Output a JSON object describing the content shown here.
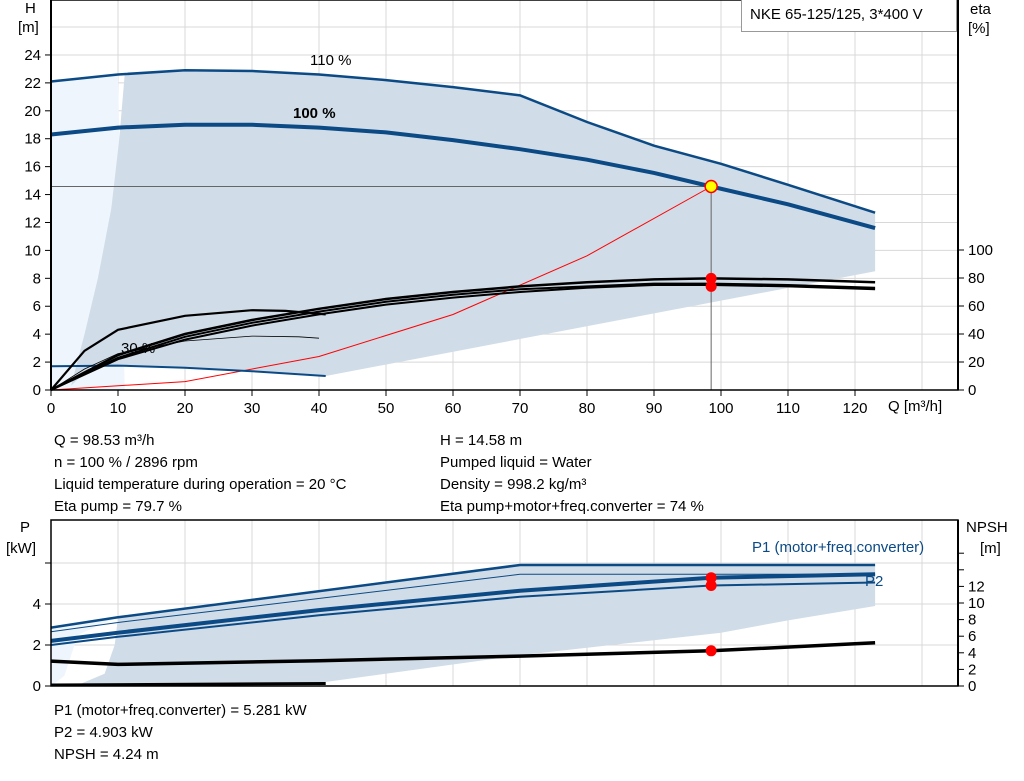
{
  "title": "NKE 65-125/125, 3*400 V",
  "colors": {
    "curve_blue": "#0b4a85",
    "shade": "#d0dce7",
    "shade_light": "#eef5fc",
    "duty_red": "#ff0000",
    "duty_yellow": "#ffff00",
    "system_curve": "#ff0000"
  },
  "chart_data": [
    {
      "type": "line",
      "name": "head-efficiency",
      "xlabel": "Q [m³/h]",
      "ylabel_left": [
        "H",
        "[m]"
      ],
      "ylabel_right": [
        "eta",
        "[%]"
      ],
      "xlim": [
        0,
        134
      ],
      "ylim_left": [
        0,
        27.9
      ],
      "ylim_right": [
        0,
        100
      ],
      "xticks": [
        "0",
        "10",
        "20",
        "30",
        "40",
        "50",
        "60",
        "70",
        "80",
        "90",
        "100",
        "110",
        "120"
      ],
      "yticks_left": [
        "0",
        "2",
        "4",
        "6",
        "8",
        "10",
        "12",
        "14",
        "16",
        "18",
        "20",
        "22",
        "24"
      ],
      "yticks_right": [
        "0",
        "20",
        "40",
        "60",
        "80",
        "100"
      ],
      "grid": true,
      "curve_labels": {
        "h110": "110 %",
        "h100": "100 %",
        "h30": "30 %"
      },
      "head_curves": [
        {
          "speed": "110 %",
          "points": [
            [
              0,
              22.1
            ],
            [
              10,
              22.6
            ],
            [
              20,
              22.9
            ],
            [
              30,
              22.85
            ],
            [
              40,
              22.6
            ],
            [
              50,
              22.2
            ],
            [
              60,
              21.7
            ],
            [
              70,
              21.1
            ],
            [
              80,
              19.2
            ],
            [
              90,
              17.5
            ],
            [
              100,
              16.2
            ],
            [
              110,
              14.7
            ],
            [
              123,
              12.7
            ]
          ]
        },
        {
          "speed": "100 %",
          "points": [
            [
              0,
              18.3
            ],
            [
              10,
              18.8
            ],
            [
              20,
              19.0
            ],
            [
              30,
              19.0
            ],
            [
              40,
              18.8
            ],
            [
              50,
              18.45
            ],
            [
              60,
              17.9
            ],
            [
              70,
              17.25
            ],
            [
              80,
              16.5
            ],
            [
              90,
              15.55
            ],
            [
              98.53,
              14.58
            ],
            [
              110,
              13.3
            ],
            [
              123,
              11.6
            ]
          ]
        },
        {
          "speed": "30 %",
          "points": [
            [
              0,
              1.7
            ],
            [
              10,
              1.75
            ],
            [
              20,
              1.6
            ],
            [
              30,
              1.35
            ],
            [
              41,
              1.0
            ]
          ]
        }
      ],
      "eta_curves": [
        {
          "points": [
            [
              0,
              0
            ],
            [
              10,
              22
            ],
            [
              20,
              36
            ],
            [
              30,
              46
            ],
            [
              40,
              54
            ],
            [
              50,
              61
            ],
            [
              60,
              66
            ],
            [
              70,
              70
            ],
            [
              80,
              73
            ],
            [
              90,
              75
            ],
            [
              98.53,
              75
            ],
            [
              110,
              74
            ],
            [
              123,
              72
            ]
          ]
        },
        {
          "points": [
            [
              0,
              0
            ],
            [
              10,
              23
            ],
            [
              20,
              38
            ],
            [
              30,
              48
            ],
            [
              40,
              56
            ],
            [
              50,
              63
            ],
            [
              60,
              68
            ],
            [
              70,
              72
            ],
            [
              80,
              74
            ],
            [
              90,
              76
            ],
            [
              98.53,
              76
            ],
            [
              110,
              75
            ],
            [
              123,
              73
            ]
          ]
        },
        {
          "points": [
            [
              0,
              0
            ],
            [
              10,
              25
            ],
            [
              20,
              40
            ],
            [
              30,
              50
            ],
            [
              40,
              58
            ],
            [
              50,
              65
            ],
            [
              60,
              70
            ],
            [
              70,
              74
            ],
            [
              80,
              77
            ],
            [
              90,
              79
            ],
            [
              98.53,
              79.7
            ],
            [
              110,
              79
            ],
            [
              123,
              77
            ]
          ]
        },
        {
          "points": [
            [
              0,
              0
            ],
            [
              5,
              15
            ],
            [
              10,
              26
            ],
            [
              20,
              35
            ],
            [
              30,
              38.5
            ],
            [
              37,
              38
            ],
            [
              40,
              37
            ]
          ]
        },
        {
          "points": [
            [
              0,
              0
            ],
            [
              5,
              28
            ],
            [
              10,
              43
            ],
            [
              20,
              53
            ],
            [
              30,
              57
            ],
            [
              35,
              56.5
            ],
            [
              41,
              54
            ]
          ]
        }
      ],
      "system_curve": {
        "points": [
          [
            0,
            0
          ],
          [
            20,
            0.6
          ],
          [
            40,
            2.4
          ],
          [
            60,
            5.41
          ],
          [
            80,
            9.61
          ],
          [
            98.53,
            14.58
          ]
        ]
      },
      "duty_point": {
        "Q": 98.53,
        "H": 14.58,
        "eta_pump": 79.7,
        "eta_total": 74
      }
    },
    {
      "type": "line",
      "name": "power-npsh",
      "ylabel_left": [
        "P",
        "[kW]"
      ],
      "ylabel_right": [
        "NPSH",
        "[m]"
      ],
      "xlim": [
        0,
        134
      ],
      "ylim_left": [
        0,
        8.1
      ],
      "yticks_left": [
        "0",
        "2",
        "4"
      ],
      "yticks_right": [
        "0",
        "2",
        "4",
        "6",
        "8",
        "10",
        "12"
      ],
      "grid": true,
      "legend_labels": {
        "p1": "P1 (motor+freq.converter)",
        "p2": "P2"
      },
      "power_curves": [
        {
          "label": "P1 110 %",
          "points": [
            [
              0,
              2.85
            ],
            [
              10,
              3.35
            ],
            [
              70,
              5.9
            ],
            [
              123,
              5.9
            ]
          ]
        },
        {
          "label": "P2 110 %",
          "points": [
            [
              0,
              2.65
            ],
            [
              10,
              3.1
            ],
            [
              70,
              5.45
            ],
            [
              123,
              5.45
            ]
          ]
        },
        {
          "label": "P1 100 %",
          "points": [
            [
              0,
              2.2
            ],
            [
              10,
              2.6
            ],
            [
              40,
              3.7
            ],
            [
              70,
              4.65
            ],
            [
              98.53,
              5.281
            ],
            [
              123,
              5.45
            ]
          ]
        },
        {
          "label": "P2 100 %",
          "points": [
            [
              0,
              2.0
            ],
            [
              10,
              2.4
            ],
            [
              40,
              3.45
            ],
            [
              70,
              4.35
            ],
            [
              98.53,
              4.903
            ],
            [
              123,
              5.05
            ]
          ]
        },
        {
          "label": "30 %",
          "points": [
            [
              0,
              0.05
            ],
            [
              41,
              0.12
            ]
          ]
        }
      ],
      "npsh_curve": {
        "points": [
          [
            0,
            3.0
          ],
          [
            10,
            2.6
          ],
          [
            40,
            3.05
          ],
          [
            70,
            3.6
          ],
          [
            98.53,
            4.24
          ],
          [
            123,
            5.2
          ]
        ]
      },
      "duty_point": {
        "Q": 98.53,
        "P1": 5.281,
        "P2": 4.903,
        "NPSH": 4.24
      }
    }
  ],
  "info_left": [
    "Q = 98.53 m³/h",
    "n = 100 % / 2896 rpm",
    "Liquid temperature during operation = 20 °C",
    "Eta pump = 79.7 %"
  ],
  "info_right": [
    "H = 14.58 m",
    "Pumped liquid = Water",
    "Density = 998.2 kg/m³",
    "Eta pump+motor+freq.converter = 74 %"
  ],
  "info_bottom": [
    "P1 (motor+freq.converter) = 5.281 kW",
    "P2 = 4.903 kW",
    "NPSH = 4.24 m"
  ]
}
